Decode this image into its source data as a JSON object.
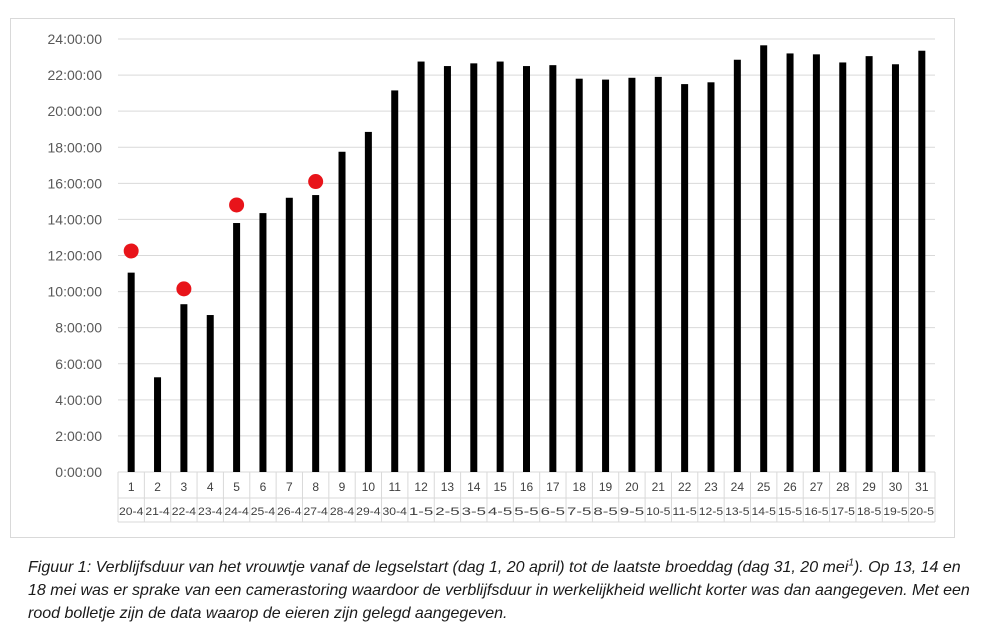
{
  "chart_data": {
    "type": "bar",
    "title": "",
    "xlabel": "",
    "ylabel": "",
    "ylim": [
      "0:00:00",
      "24:00:00"
    ],
    "y_ticks": [
      "0:00:00",
      "2:00:00",
      "4:00:00",
      "6:00:00",
      "8:00:00",
      "10:00:00",
      "12:00:00",
      "14:00:00",
      "16:00:00",
      "18:00:00",
      "20:00:00",
      "22:00:00",
      "24:00:00"
    ],
    "grid": true,
    "bar_color": "#000000",
    "marker_color": "#e8141a",
    "days": [
      "1",
      "2",
      "3",
      "4",
      "5",
      "6",
      "7",
      "8",
      "9",
      "10",
      "11",
      "12",
      "13",
      "14",
      "15",
      "16",
      "17",
      "18",
      "19",
      "20",
      "21",
      "22",
      "23",
      "24",
      "25",
      "26",
      "27",
      "28",
      "29",
      "30",
      "31"
    ],
    "dates": [
      "20-4",
      "21-4",
      "22-4",
      "23-4",
      "24-4",
      "25-4",
      "26-4",
      "27-4",
      "28-4",
      "29-4",
      "30-4",
      "1-5",
      "2-5",
      "3-5",
      "4-5",
      "5-5",
      "6-5",
      "7-5",
      "8-5",
      "9-5",
      "10-5",
      "11-5",
      "12-5",
      "13-5",
      "14-5",
      "15-5",
      "16-5",
      "17-5",
      "18-5",
      "19-5",
      "20-5"
    ],
    "values_hours": [
      11.05,
      5.25,
      9.3,
      8.7,
      13.8,
      14.35,
      15.2,
      15.35,
      17.75,
      18.85,
      21.15,
      22.75,
      22.5,
      22.65,
      22.75,
      22.5,
      22.55,
      21.8,
      21.75,
      21.85,
      21.9,
      21.5,
      21.6,
      22.85,
      23.65,
      23.2,
      23.15,
      22.7,
      23.05,
      22.6,
      23.35
    ],
    "egg_markers": [
      {
        "day": "1",
        "value_hours": 12.25
      },
      {
        "day": "3",
        "value_hours": 10.15
      },
      {
        "day": "5",
        "value_hours": 14.8
      },
      {
        "day": "8",
        "value_hours": 16.1
      }
    ]
  },
  "caption": {
    "part1": "Figuur 1: Verblijfsduur van het vrouwtje vanaf de legselstart (dag 1, 20 april) tot de laatste broeddag (dag 31, 20 mei",
    "footnote_mark": "1",
    "part2": "). Op 13, 14 en 18 mei was er sprake van een camerastoring waardoor de verblijfsduur in werkelijkheid wellicht korter was dan aangegeven. Met een rood bolletje zijn de data waarop de eieren zijn gelegd aangegeven."
  }
}
